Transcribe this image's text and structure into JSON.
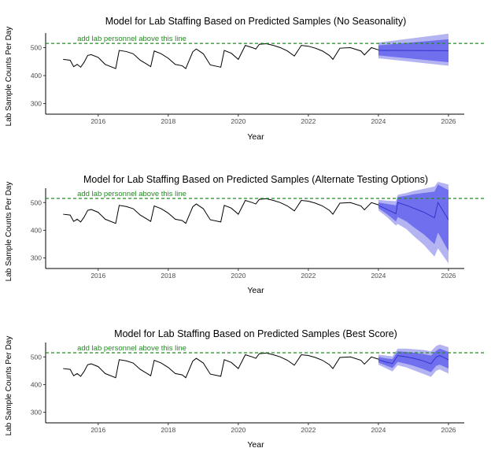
{
  "chart_data": [
    {
      "type": "line",
      "title": "Model for Lab Staffing Based on Predicted Samples (No Seasonality)",
      "xlabel": "Year",
      "ylabel": "Lab Sample Counts Per Day",
      "xlim": [
        2014.5,
        2026.45
      ],
      "ylim": [
        262,
        552
      ],
      "xticks": [
        2016,
        2018,
        2020,
        2022,
        2024,
        2026
      ],
      "yticks": [
        300,
        400,
        500
      ],
      "threshold": {
        "value": 515,
        "label": "add lab personnel above this line"
      },
      "historical": {
        "x": [
          2015.0,
          2015.2,
          2015.3,
          2015.4,
          2015.5,
          2015.6,
          2015.7,
          2015.8,
          2016.0,
          2016.2,
          2016.5,
          2016.6,
          2016.8,
          2017.0,
          2017.2,
          2017.4,
          2017.5,
          2017.6,
          2017.8,
          2018.0,
          2018.2,
          2018.4,
          2018.5,
          2018.7,
          2018.8,
          2019.0,
          2019.2,
          2019.5,
          2019.6,
          2019.8,
          2020.0,
          2020.2,
          2020.4,
          2020.5,
          2020.6,
          2020.8,
          2021.0,
          2021.2,
          2021.4,
          2021.6,
          2021.8,
          2022.0,
          2022.2,
          2022.4,
          2022.6,
          2022.7,
          2022.9,
          2023.2,
          2023.5,
          2023.6,
          2023.8,
          2024.0
        ],
        "y": [
          458,
          455,
          432,
          440,
          430,
          448,
          472,
          475,
          465,
          440,
          425,
          490,
          486,
          478,
          455,
          440,
          432,
          488,
          478,
          462,
          440,
          435,
          425,
          485,
          495,
          478,
          438,
          430,
          490,
          480,
          458,
          508,
          500,
          495,
          512,
          514,
          508,
          500,
          488,
          470,
          508,
          505,
          498,
          488,
          472,
          458,
          498,
          500,
          488,
          474,
          500,
          492
        ]
      },
      "forecast": {
        "x": [
          2024.0,
          2026.0
        ],
        "mean": [
          490,
          489
        ],
        "lower80": [
          472,
          448
        ],
        "upper80": [
          508,
          530
        ],
        "lower95": [
          462,
          435
        ],
        "upper95": [
          518,
          550
        ]
      }
    },
    {
      "type": "line",
      "title": "Model for Lab Staffing Based on Predicted Samples (Alternate Testing Options)",
      "xlabel": "Year",
      "ylabel": "Lab Sample Counts Per Day",
      "xlim": [
        2014.5,
        2026.45
      ],
      "ylim": [
        262,
        552
      ],
      "xticks": [
        2016,
        2018,
        2020,
        2022,
        2024,
        2026
      ],
      "yticks": [
        300,
        400,
        500
      ],
      "threshold": {
        "value": 515,
        "label": "add lab personnel above this line"
      },
      "historical": {
        "x": [
          2015.0,
          2015.2,
          2015.3,
          2015.4,
          2015.5,
          2015.6,
          2015.7,
          2015.8,
          2016.0,
          2016.2,
          2016.5,
          2016.6,
          2016.8,
          2017.0,
          2017.2,
          2017.4,
          2017.5,
          2017.6,
          2017.8,
          2018.0,
          2018.2,
          2018.4,
          2018.5,
          2018.7,
          2018.8,
          2019.0,
          2019.2,
          2019.5,
          2019.6,
          2019.8,
          2020.0,
          2020.2,
          2020.4,
          2020.5,
          2020.6,
          2020.8,
          2021.0,
          2021.2,
          2021.4,
          2021.6,
          2021.8,
          2022.0,
          2022.2,
          2022.4,
          2022.6,
          2022.7,
          2022.9,
          2023.2,
          2023.5,
          2023.6,
          2023.8,
          2024.0
        ],
        "y": [
          458,
          455,
          432,
          440,
          430,
          448,
          472,
          475,
          465,
          440,
          425,
          490,
          486,
          478,
          455,
          440,
          432,
          488,
          478,
          462,
          440,
          435,
          425,
          485,
          495,
          478,
          438,
          430,
          490,
          480,
          458,
          508,
          500,
          495,
          512,
          514,
          508,
          500,
          488,
          470,
          508,
          505,
          498,
          488,
          472,
          458,
          498,
          500,
          488,
          474,
          500,
          492
        ]
      },
      "forecast": {
        "x": [
          2024.0,
          2024.25,
          2024.5,
          2024.55,
          2024.8,
          2025.0,
          2025.3,
          2025.6,
          2025.7,
          2026.0
        ],
        "mean": [
          490,
          475,
          460,
          500,
          490,
          480,
          465,
          445,
          500,
          438
        ],
        "lower80": [
          480,
          458,
          432,
          448,
          432,
          412,
          385,
          350,
          392,
          325
        ],
        "upper80": [
          500,
          495,
          490,
          520,
          525,
          530,
          535,
          540,
          565,
          545
        ],
        "lower95": [
          472,
          447,
          417,
          423,
          404,
          380,
          347,
          305,
          335,
          280
        ],
        "upper95": [
          510,
          507,
          505,
          528,
          535,
          542,
          550,
          558,
          575,
          565
        ]
      }
    },
    {
      "type": "line",
      "title": "Model for Lab Staffing Based on Predicted Samples (Best Score)",
      "xlabel": "Year",
      "ylabel": "Lab Sample Counts Per Day",
      "xlim": [
        2014.5,
        2026.45
      ],
      "ylim": [
        262,
        552
      ],
      "xticks": [
        2016,
        2018,
        2020,
        2022,
        2024,
        2026
      ],
      "yticks": [
        300,
        400,
        500
      ],
      "threshold": {
        "value": 515,
        "label": "add lab personnel above this line"
      },
      "historical": {
        "x": [
          2015.0,
          2015.2,
          2015.3,
          2015.4,
          2015.5,
          2015.6,
          2015.7,
          2015.8,
          2016.0,
          2016.2,
          2016.5,
          2016.6,
          2016.8,
          2017.0,
          2017.2,
          2017.4,
          2017.5,
          2017.6,
          2017.8,
          2018.0,
          2018.2,
          2018.4,
          2018.5,
          2018.7,
          2018.8,
          2019.0,
          2019.2,
          2019.5,
          2019.6,
          2019.8,
          2020.0,
          2020.2,
          2020.4,
          2020.5,
          2020.6,
          2020.8,
          2021.0,
          2021.2,
          2021.4,
          2021.6,
          2021.8,
          2022.0,
          2022.2,
          2022.4,
          2022.6,
          2022.7,
          2022.9,
          2023.2,
          2023.5,
          2023.6,
          2023.8,
          2024.0
        ],
        "y": [
          458,
          455,
          432,
          440,
          430,
          448,
          472,
          475,
          465,
          440,
          425,
          490,
          486,
          478,
          455,
          440,
          432,
          488,
          478,
          462,
          440,
          435,
          425,
          485,
          495,
          478,
          438,
          430,
          490,
          480,
          458,
          508,
          500,
          495,
          512,
          514,
          508,
          500,
          488,
          470,
          508,
          505,
          498,
          488,
          472,
          458,
          498,
          500,
          488,
          474,
          500,
          492
        ]
      },
      "forecast": {
        "x": [
          2024.0,
          2024.2,
          2024.4,
          2024.55,
          2024.8,
          2025.0,
          2025.3,
          2025.5,
          2025.65,
          2025.75,
          2026.0
        ],
        "mean": [
          490,
          482,
          476,
          505,
          500,
          495,
          485,
          475,
          500,
          505,
          490
        ],
        "lower80": [
          480,
          470,
          460,
          482,
          475,
          468,
          455,
          445,
          468,
          472,
          458
        ],
        "upper80": [
          500,
          495,
          492,
          520,
          518,
          515,
          510,
          505,
          522,
          530,
          518
        ],
        "lower95": [
          472,
          460,
          448,
          470,
          462,
          452,
          438,
          428,
          450,
          455,
          440
        ],
        "upper95": [
          508,
          505,
          502,
          530,
          530,
          528,
          525,
          520,
          540,
          545,
          535
        ]
      }
    }
  ],
  "colors": {
    "line": "#000000",
    "forecast_mean": "#3333cc",
    "band95": "#b4b4f2",
    "band80": "#7070ee",
    "threshold": "#228b22",
    "axis_text": "#4d4d4d",
    "title_text": "#000000"
  }
}
